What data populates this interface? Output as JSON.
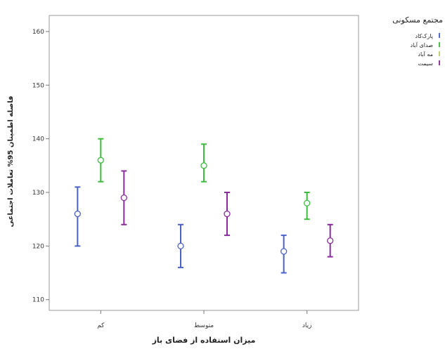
{
  "chart_data": {
    "type": "errorbar",
    "xlabel": "میزان استفاده از فضای باز",
    "ylabel": "فاصله اطمینان 95% تعاملات اجتماعی",
    "ylim": [
      108,
      163
    ],
    "yticks": [
      110,
      120,
      130,
      140,
      150,
      160
    ],
    "categories": [
      "کم",
      "متوسط",
      "زیاد"
    ],
    "legend_title": "مجتمع مسکونی",
    "legend_position": "right",
    "grid": false,
    "series": [
      {
        "name": "پارک‌کاد",
        "color": "#4a62c8",
        "points": [
          {
            "mean": 126,
            "low": 120,
            "high": 131
          },
          {
            "mean": 120,
            "low": 116,
            "high": 124
          },
          {
            "mean": 119,
            "low": 115,
            "high": 122
          }
        ]
      },
      {
        "name": "صدای آباد",
        "color": "#3dbb3d",
        "points": [
          {
            "mean": 136,
            "low": 132,
            "high": 140
          },
          {
            "mean": 135,
            "low": 132,
            "high": 139
          },
          {
            "mean": 128,
            "low": 125,
            "high": 130
          }
        ]
      },
      {
        "name": "مه آباد",
        "color": "#b9d36a",
        "points": [
          null,
          null,
          null
        ]
      },
      {
        "name": "سیمت",
        "color": "#8c2b9c",
        "points": [
          {
            "mean": 129,
            "low": 124,
            "high": 134
          },
          {
            "mean": 126,
            "low": 122,
            "high": 130
          },
          {
            "mean": 121,
            "low": 118,
            "high": 124
          }
        ]
      }
    ]
  }
}
